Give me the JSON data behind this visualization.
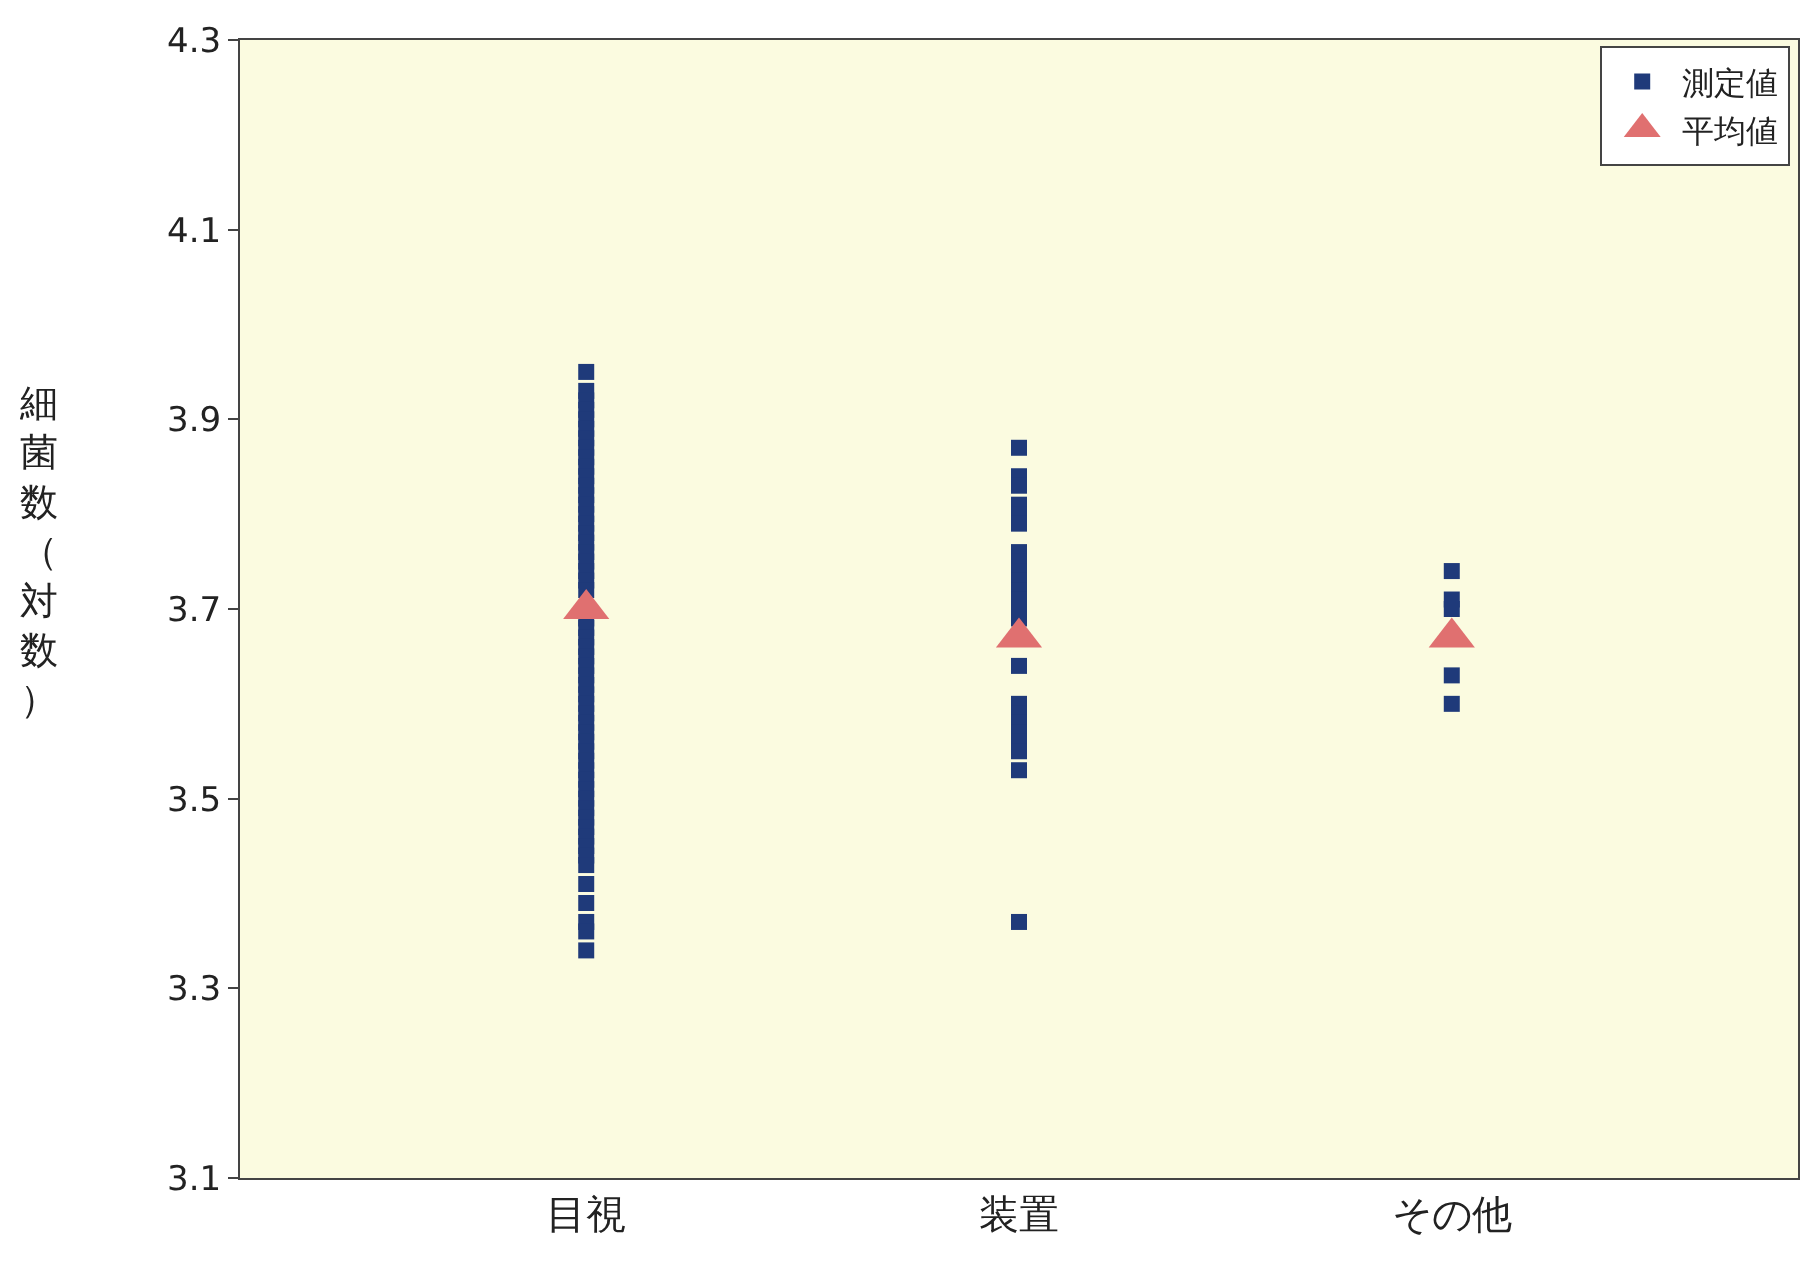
{
  "chart_data": {
    "type": "scatter",
    "ylabel": "細菌数（対数）",
    "categories": [
      "目視",
      "装置",
      "その他"
    ],
    "ylim": [
      3.1,
      4.3
    ],
    "yticks": [
      3.1,
      3.3,
      3.5,
      3.7,
      3.9,
      4.1,
      4.3
    ],
    "grid": false,
    "legend": "top right",
    "series": [
      {
        "name": "測定値",
        "marker": "square",
        "color": "#1f3a7a",
        "x": [
          "目視",
          "目視",
          "目視",
          "目視",
          "目視",
          "目視",
          "目視",
          "目視",
          "目視",
          "目視",
          "目視",
          "目視",
          "目視",
          "目視",
          "目視",
          "目視",
          "目視",
          "目視",
          "目視",
          "目視",
          "目視",
          "目視",
          "目視",
          "目視",
          "目視",
          "目視",
          "目視",
          "目視",
          "目視",
          "目視",
          "目視",
          "目視",
          "目視",
          "目視",
          "目視",
          "目視",
          "目視",
          "目視",
          "目視",
          "目視",
          "目視",
          "目視",
          "目視",
          "目視",
          "目視",
          "目視",
          "目視",
          "目視",
          "目視",
          "目視",
          "目視",
          "目視",
          "目視",
          "目視",
          "目視",
          "目視",
          "目視",
          "装置",
          "装置",
          "装置",
          "装置",
          "装置",
          "装置",
          "装置",
          "装置",
          "装置",
          "装置",
          "装置",
          "装置",
          "装置",
          "装置",
          "装置",
          "装置",
          "装置",
          "装置",
          "装置",
          "装置",
          "装置",
          "装置",
          "装置",
          "その他",
          "その他",
          "その他",
          "その他",
          "その他"
        ],
        "values": [
          3.95,
          3.93,
          3.92,
          3.91,
          3.9,
          3.89,
          3.88,
          3.87,
          3.86,
          3.85,
          3.84,
          3.83,
          3.82,
          3.81,
          3.8,
          3.79,
          3.78,
          3.77,
          3.76,
          3.75,
          3.74,
          3.73,
          3.72,
          null,
          null,
          3.69,
          3.68,
          3.67,
          3.66,
          3.65,
          3.64,
          3.63,
          3.62,
          3.61,
          3.6,
          3.59,
          3.58,
          3.57,
          3.56,
          3.55,
          3.54,
          3.53,
          3.52,
          3.51,
          3.5,
          3.49,
          3.48,
          3.47,
          3.46,
          3.45,
          3.44,
          3.43,
          3.41,
          3.39,
          3.37,
          3.36,
          3.34,
          3.87,
          3.84,
          3.83,
          3.81,
          3.8,
          3.79,
          3.76,
          3.75,
          3.74,
          3.73,
          3.72,
          3.71,
          3.7,
          3.69,
          3.64,
          3.6,
          3.59,
          3.58,
          3.57,
          3.56,
          3.55,
          3.53,
          3.37,
          3.74,
          3.71,
          3.7,
          3.63,
          3.6
        ]
      },
      {
        "name": "平均値",
        "marker": "triangle",
        "color": "#e07070",
        "x": [
          "目視",
          "装置",
          "その他"
        ],
        "values": [
          3.7,
          3.67,
          3.67
        ]
      }
    ]
  }
}
